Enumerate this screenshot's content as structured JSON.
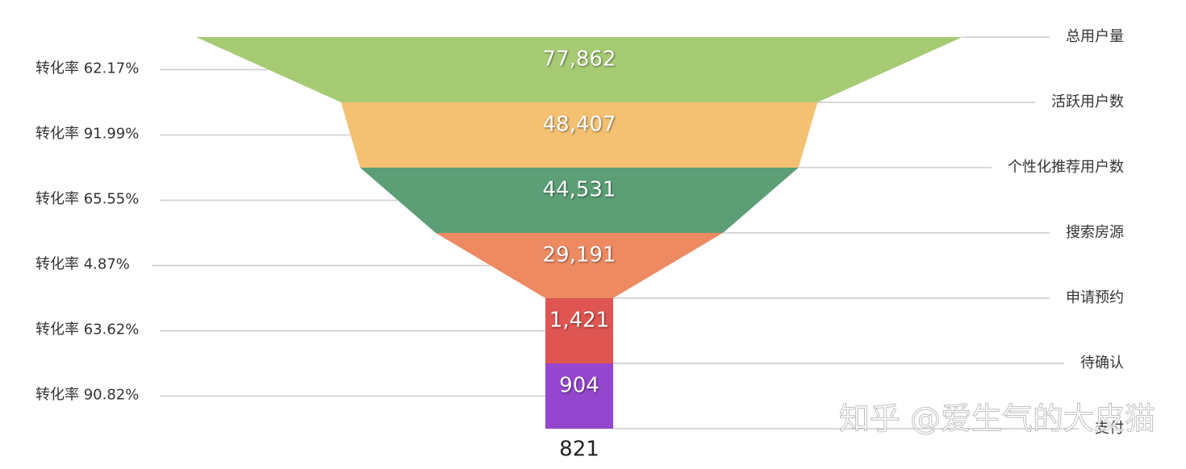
{
  "chart_data": {
    "type": "funnel",
    "categories": [
      "总用户量",
      "活跃用户数",
      "个性化推荐用户数",
      "搜索房源",
      "申请预约",
      "待确认",
      "支付"
    ],
    "values": [
      77862,
      48407,
      44531,
      29191,
      1421,
      904,
      821
    ],
    "value_labels": [
      "77,862",
      "48,407",
      "44,531",
      "29,191",
      "1,421",
      "904",
      "821"
    ],
    "colors": [
      "#a6cb73",
      "#f4c072",
      "#5c9f76",
      "#ee8a62",
      "#de5551",
      "#9546cf"
    ],
    "conversion_labels": [
      "转化率 62.17%",
      "转化率 91.99%",
      "转化率 65.55%",
      "转化率 4.87%",
      "转化率 63.62%",
      "转化率 90.82%"
    ],
    "watermark": "知乎 @爱生气的大皮猫"
  }
}
